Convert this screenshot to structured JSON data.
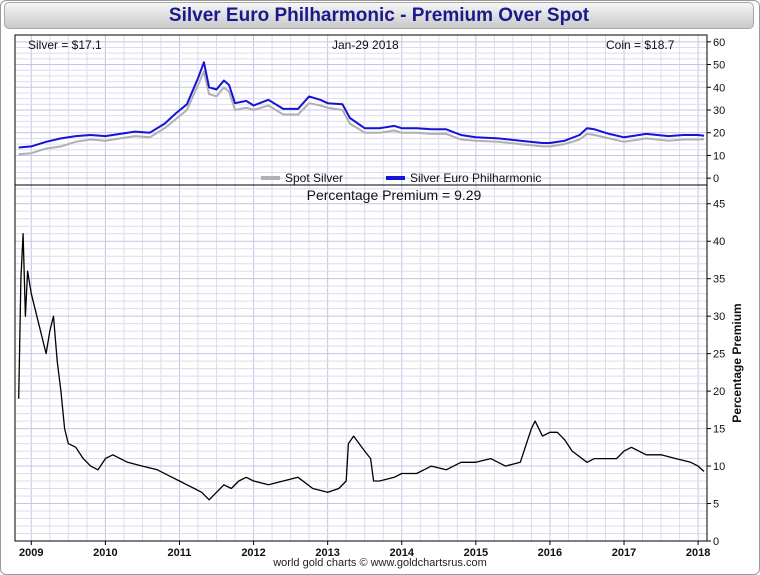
{
  "title": "Silver Euro Philharmonic - Premium Over Spot",
  "top_panel": {
    "silver_label": "Silver = $17.1",
    "date_label": "Jan-29  2018",
    "coin_label": "Coin = $18.7",
    "legend_spot": "Spot Silver",
    "legend_coin": "Silver Euro Philharmonic"
  },
  "bottom_panel": {
    "premium_label": "Percentage Premium = 9.29",
    "ylabel": "Percentage Premium"
  },
  "footer": "world gold charts © www.goldchartsrus.com",
  "colors": {
    "title": "#1a1a8c",
    "spot": "#b0b0b0",
    "coin": "#1414d8",
    "premium": "#000000",
    "grid": "#dcdcf2"
  },
  "chart_data": [
    {
      "type": "line",
      "x_ticks": [
        "2009",
        "2010",
        "2011",
        "2012",
        "2013",
        "2014",
        "2015",
        "2016",
        "2017",
        "2018"
      ],
      "yticks": [
        0,
        10,
        20,
        30,
        40,
        50,
        60
      ],
      "ylim": [
        -3,
        63
      ],
      "grid": true,
      "legend": "bottom-center",
      "series": [
        {
          "name": "Spot Silver",
          "color": "#b0b0b0",
          "x": [
            2008.83,
            2009.0,
            2009.2,
            2009.4,
            2009.6,
            2009.8,
            2010.0,
            2010.2,
            2010.4,
            2010.6,
            2010.8,
            2010.95,
            2011.1,
            2011.25,
            2011.33,
            2011.4,
            2011.5,
            2011.6,
            2011.67,
            2011.75,
            2011.9,
            2012.0,
            2012.2,
            2012.4,
            2012.6,
            2012.75,
            2012.9,
            2013.0,
            2013.2,
            2013.3,
            2013.5,
            2013.7,
            2013.9,
            2014.0,
            2014.2,
            2014.4,
            2014.6,
            2014.8,
            2015.0,
            2015.3,
            2015.6,
            2015.9,
            2016.0,
            2016.2,
            2016.4,
            2016.5,
            2016.6,
            2016.8,
            2017.0,
            2017.3,
            2017.6,
            2017.8,
            2018.0,
            2018.08
          ],
          "values": [
            10.5,
            11,
            13,
            14,
            16,
            17,
            16.5,
            17.5,
            18.5,
            18,
            22,
            26,
            30,
            41,
            47,
            37,
            36,
            40,
            38,
            30,
            31,
            30,
            32,
            28,
            28,
            33,
            32,
            31,
            30,
            24,
            20,
            20,
            21,
            20,
            20,
            19.5,
            19.5,
            17,
            16.5,
            16,
            15,
            14,
            14,
            15,
            17,
            19.5,
            19,
            17.5,
            16,
            17.5,
            16.5,
            17,
            17,
            17.1
          ]
        },
        {
          "name": "Silver Euro Philharmonic",
          "color": "#1414d8",
          "x": [
            2008.83,
            2009.0,
            2009.2,
            2009.4,
            2009.6,
            2009.8,
            2010.0,
            2010.2,
            2010.4,
            2010.6,
            2010.8,
            2010.95,
            2011.1,
            2011.25,
            2011.33,
            2011.4,
            2011.5,
            2011.6,
            2011.67,
            2011.75,
            2011.9,
            2012.0,
            2012.2,
            2012.4,
            2012.6,
            2012.75,
            2012.9,
            2013.0,
            2013.2,
            2013.3,
            2013.5,
            2013.7,
            2013.9,
            2014.0,
            2014.2,
            2014.4,
            2014.6,
            2014.8,
            2015.0,
            2015.3,
            2015.6,
            2015.9,
            2016.0,
            2016.2,
            2016.4,
            2016.5,
            2016.6,
            2016.8,
            2017.0,
            2017.3,
            2017.6,
            2017.8,
            2018.0,
            2018.08
          ],
          "values": [
            13.5,
            14,
            16,
            17.5,
            18.5,
            19,
            18.5,
            19.5,
            20.5,
            20,
            24,
            28.5,
            32.5,
            44,
            51,
            40,
            39,
            43,
            41,
            33,
            34,
            32,
            34.5,
            30.5,
            30.5,
            36,
            34.5,
            33,
            32.5,
            26.5,
            22,
            22,
            23,
            22,
            22,
            21.5,
            21.5,
            19,
            18,
            17.5,
            16.5,
            15.5,
            15.5,
            16.5,
            19,
            22,
            21.5,
            19.5,
            18,
            19.5,
            18.5,
            19,
            19,
            18.7
          ]
        }
      ]
    },
    {
      "type": "line",
      "x_ticks": [
        "2009",
        "2010",
        "2011",
        "2012",
        "2013",
        "2014",
        "2015",
        "2016",
        "2017",
        "2018"
      ],
      "yticks": [
        0,
        5,
        10,
        15,
        20,
        25,
        30,
        35,
        40,
        45
      ],
      "ylim": [
        0,
        47.5
      ],
      "ylabel": "Percentage Premium",
      "grid": true,
      "series": [
        {
          "name": "Premium",
          "color": "#000000",
          "x": [
            2008.83,
            2008.86,
            2008.89,
            2008.92,
            2008.95,
            2009.0,
            2009.05,
            2009.1,
            2009.15,
            2009.2,
            2009.25,
            2009.3,
            2009.35,
            2009.4,
            2009.45,
            2009.5,
            2009.6,
            2009.7,
            2009.8,
            2009.9,
            2010.0,
            2010.1,
            2010.3,
            2010.5,
            2010.7,
            2010.9,
            2011.0,
            2011.1,
            2011.2,
            2011.3,
            2011.4,
            2011.5,
            2011.6,
            2011.7,
            2011.8,
            2011.9,
            2012.0,
            2012.2,
            2012.4,
            2012.6,
            2012.8,
            2013.0,
            2013.15,
            2013.25,
            2013.28,
            2013.35,
            2013.5,
            2013.58,
            2013.62,
            2013.7,
            2013.9,
            2014.0,
            2014.2,
            2014.4,
            2014.6,
            2014.8,
            2015.0,
            2015.2,
            2015.4,
            2015.6,
            2015.65,
            2015.7,
            2015.75,
            2015.8,
            2015.9,
            2016.0,
            2016.1,
            2016.2,
            2016.3,
            2016.5,
            2016.6,
            2016.8,
            2016.9,
            2017.0,
            2017.1,
            2017.3,
            2017.5,
            2017.7,
            2017.9,
            2018.0,
            2018.08
          ],
          "values": [
            19,
            35,
            41,
            30,
            36,
            33,
            31,
            29,
            27,
            25,
            28,
            30,
            24,
            20,
            15,
            13,
            12.5,
            11,
            10,
            9.5,
            11,
            11.5,
            10.5,
            10,
            9.5,
            8.5,
            8,
            7.5,
            7,
            6.5,
            5.5,
            6.5,
            7.5,
            7,
            8,
            8.5,
            8,
            7.5,
            8,
            8.5,
            7,
            6.5,
            7,
            8,
            13,
            14,
            12,
            11,
            8,
            8,
            8.5,
            9,
            9,
            10,
            9.5,
            10.5,
            10.5,
            11,
            10,
            10.5,
            12,
            13.5,
            15,
            16,
            14,
            14.5,
            14.5,
            13.5,
            12,
            10.5,
            11,
            11,
            11,
            12,
            12.5,
            11.5,
            11.5,
            11,
            10.5,
            10,
            9.29
          ]
        }
      ]
    }
  ]
}
